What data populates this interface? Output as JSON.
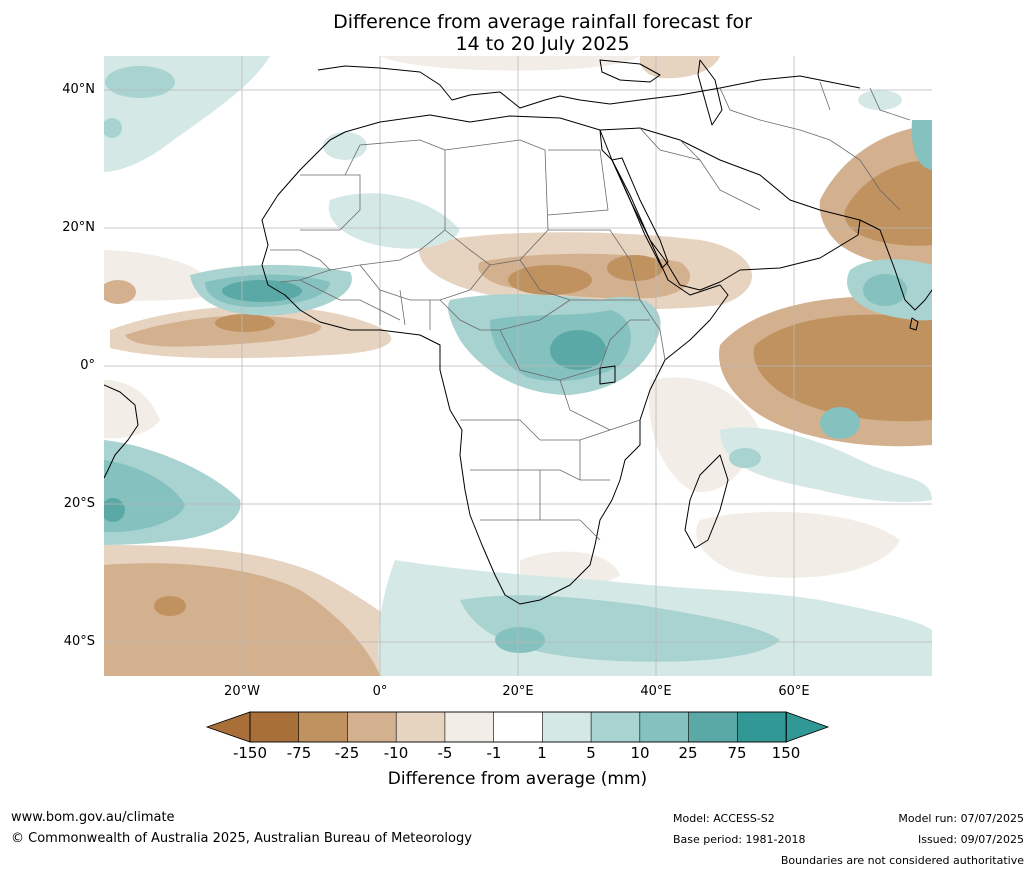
{
  "title": {
    "line1": "Difference from average rainfall forecast for",
    "line2": "14 to 20 July 2025"
  },
  "axes": {
    "latitude_labels": [
      "40°N",
      "20°N",
      "0°",
      "20°S",
      "40°S"
    ],
    "longitude_labels": [
      "20°W",
      "0°",
      "20°E",
      "40°E",
      "60°E"
    ]
  },
  "colorbar": {
    "title": "Difference from average (mm)",
    "tick_labels": [
      "-150",
      "-75",
      "-25",
      "-10",
      "-5",
      "-1",
      "1",
      "5",
      "10",
      "25",
      "75",
      "150"
    ],
    "colors": [
      "#a86f39",
      "#a86f39",
      "#c0925f",
      "#d3b08e",
      "#e6d3c0",
      "#f2ede6",
      "#ffffff",
      "#d4e8e6",
      "#a9d3d0",
      "#84c1bf",
      "#5aa9a6",
      "#329895",
      "#329895"
    ]
  },
  "footer": {
    "website": "www.bom.gov.au/climate",
    "copyright": "© Commonwealth of Australia 2025, Australian Bureau of Meteorology",
    "model": "Model: ACCESS-S2",
    "base_period": "Base period: 1981-2018",
    "model_run": "Model run: 07/07/2025",
    "issued": "Issued: 09/07/2025",
    "disclaimer": "Boundaries are not considered authoritative"
  }
}
